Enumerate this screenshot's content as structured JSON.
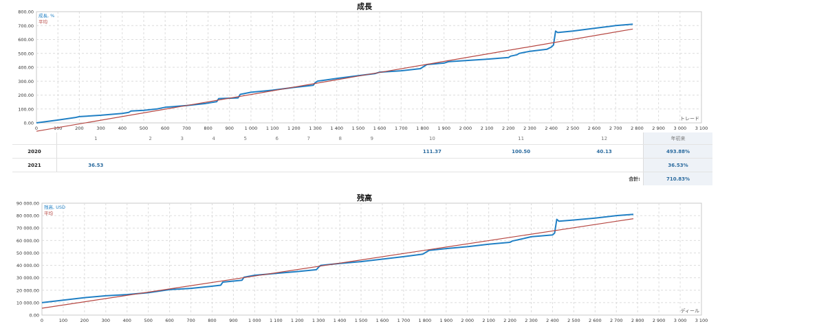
{
  "chart_data": [
    {
      "type": "line",
      "title": "成長",
      "legend": [
        "成長, %",
        "平均"
      ],
      "legend_position": "top-left",
      "xlabel": "トレード",
      "xlim": [
        0,
        3100
      ],
      "ylim": [
        0,
        800
      ],
      "grid": true,
      "x_ticks": [
        "0",
        "100",
        "200",
        "300",
        "400",
        "500",
        "600",
        "700",
        "800",
        "900",
        "1 000",
        "1 100",
        "1 200",
        "1 300",
        "1 400",
        "1 500",
        "1 600",
        "1 700",
        "1 800",
        "1 900",
        "2 000",
        "2 100",
        "2 200",
        "2 300",
        "2 400",
        "2 500",
        "2 600",
        "2 700",
        "2 800",
        "2 900",
        "3 000",
        "3 100"
      ],
      "y_ticks": [
        "0.00",
        "100.00",
        "200.00",
        "300.00",
        "400.00",
        "500.00",
        "600.00",
        "700.00",
        "800.00"
      ],
      "series": [
        {
          "name": "成長, %",
          "color": "#1f7fc4",
          "x": [
            0,
            100,
            180,
            200,
            300,
            400,
            430,
            440,
            500,
            560,
            600,
            700,
            790,
            840,
            850,
            940,
            950,
            1000,
            1100,
            1200,
            1290,
            1300,
            1310,
            1400,
            1500,
            1580,
            1600,
            1700,
            1790,
            1800,
            1820,
            1900,
            1920,
            2000,
            2100,
            2200,
            2210,
            2240,
            2250,
            2300,
            2380,
            2400,
            2410,
            2420,
            2430,
            2500,
            2600,
            2700,
            2780
          ],
          "y": [
            0,
            20,
            38,
            45,
            55,
            68,
            75,
            85,
            90,
            100,
            112,
            125,
            140,
            152,
            175,
            180,
            205,
            220,
            235,
            255,
            270,
            290,
            300,
            320,
            340,
            355,
            365,
            375,
            390,
            400,
            420,
            430,
            440,
            448,
            458,
            470,
            480,
            490,
            500,
            515,
            530,
            545,
            560,
            660,
            650,
            660,
            680,
            700,
            710
          ]
        },
        {
          "name": "平均",
          "color": "#b5443f",
          "x": [
            0,
            2780
          ],
          "y": [
            -60,
            675
          ]
        }
      ]
    },
    {
      "type": "line",
      "title": "残高",
      "legend": [
        "残高, USD",
        "平均"
      ],
      "legend_position": "top-left",
      "xlabel": "ディール",
      "xlim": [
        0,
        3100
      ],
      "ylim": [
        0,
        90000
      ],
      "grid": true,
      "x_ticks": [
        "0",
        "100",
        "200",
        "300",
        "400",
        "500",
        "600",
        "700",
        "800",
        "900",
        "1 000",
        "1 100",
        "1 200",
        "1 300",
        "1 400",
        "1 500",
        "1 600",
        "1 700",
        "1 800",
        "1 900",
        "2 000",
        "2 100",
        "2 200",
        "2 300",
        "2 400",
        "2 500",
        "2 600",
        "2 700",
        "2 800",
        "2 900",
        "3 000",
        "3 100"
      ],
      "y_ticks": [
        "0.00",
        "10 000.00",
        "20 000.00",
        "30 000.00",
        "40 000.00",
        "50 000.00",
        "60 000.00",
        "70 000.00",
        "80 000.00",
        "90 000.00"
      ],
      "series": [
        {
          "name": "残高, USD",
          "color": "#1f7fc4",
          "x": [
            0,
            100,
            200,
            300,
            400,
            500,
            600,
            700,
            790,
            840,
            850,
            940,
            950,
            1000,
            1100,
            1200,
            1290,
            1300,
            1310,
            1400,
            1500,
            1600,
            1700,
            1790,
            1800,
            1820,
            1900,
            2000,
            2100,
            2200,
            2210,
            2250,
            2300,
            2400,
            2410,
            2420,
            2430,
            2500,
            2600,
            2700,
            2780
          ],
          "y": [
            10000,
            12000,
            14000,
            15500,
            16500,
            18000,
            20500,
            21500,
            23000,
            24000,
            26500,
            28000,
            30500,
            32000,
            33500,
            35000,
            36500,
            38500,
            40000,
            41500,
            43000,
            45000,
            47000,
            49000,
            50000,
            52000,
            53500,
            55000,
            57000,
            58500,
            59500,
            61000,
            63000,
            64500,
            66000,
            77000,
            75500,
            76500,
            78000,
            80000,
            81000
          ]
        },
        {
          "name": "平均",
          "color": "#b5443f",
          "x": [
            0,
            2780
          ],
          "y": [
            5500,
            77500
          ]
        }
      ]
    }
  ],
  "monthly_table": {
    "months": [
      "1",
      "2",
      "3",
      "4",
      "5",
      "6",
      "7",
      "8",
      "9",
      "10",
      "11",
      "12"
    ],
    "annual_header": "年初来",
    "rows": [
      {
        "year": "2020",
        "values": [
          "",
          "",
          "",
          "",
          "",
          "",
          "",
          "",
          "",
          "111.37",
          "100.50",
          "40.13"
        ],
        "annual": "493.88%"
      },
      {
        "year": "2021",
        "values": [
          "36.53",
          "",
          "",
          "",
          "",
          "",
          "",
          "",
          "",
          "",
          "",
          ""
        ],
        "annual": "36.53%"
      }
    ],
    "total_label": "合計:",
    "total_value": "710.83%"
  }
}
